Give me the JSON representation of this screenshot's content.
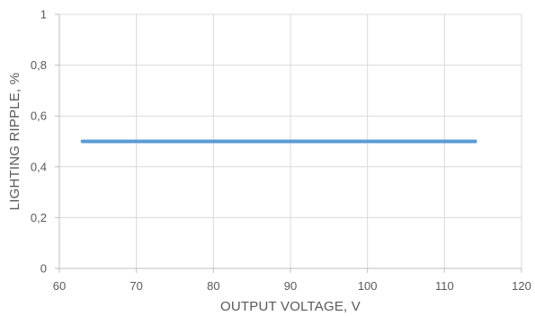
{
  "chart_data": {
    "type": "line",
    "title": "",
    "xlabel": "OUTPUT VOLTAGE, V",
    "ylabel": "LIGHTING RIPPLE, %",
    "xlim": [
      60,
      120
    ],
    "ylim": [
      0,
      1
    ],
    "x_ticks": [
      "60",
      "70",
      "80",
      "90",
      "100",
      "110",
      "120"
    ],
    "y_ticks": [
      "0",
      "0,2",
      "0,4",
      "0,6",
      "0,8",
      "1"
    ],
    "x_tick_values": [
      60,
      70,
      80,
      90,
      100,
      110,
      120
    ],
    "y_tick_values": [
      0,
      0.2,
      0.4,
      0.6,
      0.8,
      1
    ],
    "grid": true,
    "legend": "none",
    "series": [
      {
        "x": [
          63,
          114
        ],
        "y": [
          0.5,
          0.5
        ],
        "color": "#5b9bd5"
      }
    ]
  }
}
